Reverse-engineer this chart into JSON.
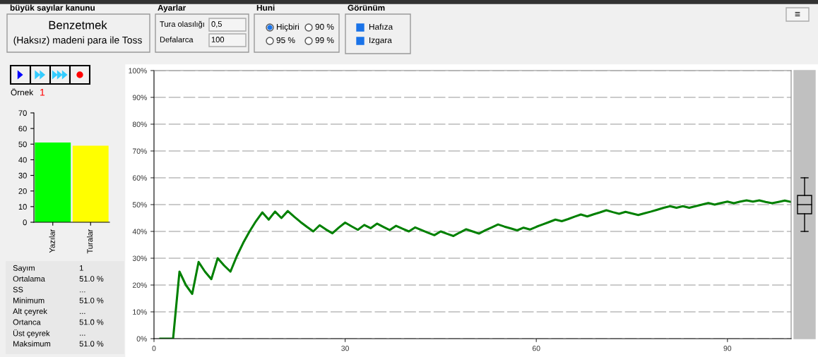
{
  "chart_data": [
    {
      "type": "other",
      "annotations": [
        "büyük sayılar kanunu",
        "Benzetmek",
        "(Haksız) madeni para ile Toss",
        "Ayarlar",
        "Tura olasılığı",
        "0,5",
        "Defalarca",
        "100",
        "Huni",
        "Hiçbiri",
        "90 %",
        "95 %",
        "99 %",
        "Görünüm",
        "Hafıza",
        "Izgara",
        "≡",
        "Örnek",
        "1"
      ]
    },
    {
      "type": "bar",
      "categories": [
        "Yazılar",
        "Turalar"
      ],
      "values": [
        51,
        49
      ],
      "colors": [
        "#00ff00",
        "#ffff00"
      ],
      "ylim": [
        0,
        70
      ],
      "yticks": [
        0,
        10,
        20,
        30,
        40,
        50,
        60,
        70
      ],
      "grid": false
    },
    {
      "type": "other",
      "annotations": [
        "Sayım",
        "1",
        "Ortalama",
        "51.0 %",
        "SS",
        "...",
        "Minimum",
        "51.0 %",
        "Alt çeyrek",
        "...",
        "Ortanca",
        "51.0 %",
        "Üst çeyrek",
        "...",
        "Maksimum",
        "51.0 %"
      ]
    },
    {
      "type": "line",
      "x": [
        1,
        2,
        3,
        4,
        5,
        6,
        7,
        8,
        9,
        10,
        11,
        12,
        13,
        14,
        15,
        16,
        17,
        18,
        19,
        20,
        21,
        22,
        23,
        24,
        25,
        26,
        27,
        28,
        29,
        30,
        31,
        32,
        33,
        34,
        35,
        36,
        37,
        38,
        39,
        40,
        41,
        42,
        43,
        44,
        45,
        46,
        47,
        48,
        49,
        50,
        51,
        52,
        53,
        54,
        55,
        56,
        57,
        58,
        59,
        60,
        61,
        62,
        63,
        64,
        65,
        66,
        67,
        68,
        69,
        70,
        71,
        72,
        73,
        74,
        75,
        76,
        77,
        78,
        79,
        80,
        81,
        82,
        83,
        84,
        85,
        86,
        87,
        88,
        89,
        90,
        91,
        92,
        93,
        94,
        95,
        96,
        97,
        98,
        99,
        100
      ],
      "series": [
        {
          "color": "#008000",
          "values": [
            0,
            0,
            0,
            25,
            20,
            16.7,
            28.6,
            25,
            22.2,
            30,
            27.3,
            25,
            30.8,
            35.7,
            40,
            43.8,
            47.1,
            44.4,
            47.4,
            45,
            47.6,
            45.5,
            43.5,
            41.7,
            40,
            42.3,
            40.7,
            39.3,
            41.4,
            43.3,
            41.9,
            40.6,
            42.4,
            41.2,
            42.9,
            41.7,
            40.5,
            42.1,
            41,
            40,
            41.5,
            40.5,
            39.5,
            38.6,
            40,
            39.1,
            38.3,
            39.6,
            40.8,
            40,
            39.2,
            40.4,
            41.5,
            42.6,
            41.8,
            41.1,
            40.4,
            41.4,
            40.7,
            41.7,
            42.6,
            43.5,
            44.4,
            43.8,
            44.6,
            45.5,
            46.3,
            45.6,
            46.4,
            47.1,
            47.9,
            47.2,
            46.6,
            47.3,
            46.7,
            46.1,
            46.8,
            47.4,
            48.1,
            48.8,
            49.4,
            48.8,
            49.4,
            48.8,
            49.4,
            50,
            50.6,
            50,
            50.6,
            51.1,
            50.5,
            51.1,
            51.6,
            51.1,
            51.6,
            51,
            50.5,
            51,
            51.5,
            51
          ]
        }
      ],
      "xlim": [
        0,
        100
      ],
      "xticks": [
        0,
        30,
        60,
        90
      ],
      "ylim": [
        0,
        100
      ],
      "yticks": [
        {
          "value": 0,
          "label": "0%"
        },
        {
          "value": 10,
          "label": "10%"
        },
        {
          "value": 20,
          "label": "20%"
        },
        {
          "value": 30,
          "label": "30%"
        },
        {
          "value": 40,
          "label": "40%"
        },
        {
          "value": 50,
          "label": "50%"
        },
        {
          "value": 60,
          "label": "60%"
        },
        {
          "value": 70,
          "label": "70%"
        },
        {
          "value": 80,
          "label": "80%"
        },
        {
          "value": 90,
          "label": "90%"
        },
        {
          "value": 100,
          "label": "100%"
        }
      ],
      "grid": "y",
      "marker": "none",
      "line_style": "solid"
    }
  ]
}
